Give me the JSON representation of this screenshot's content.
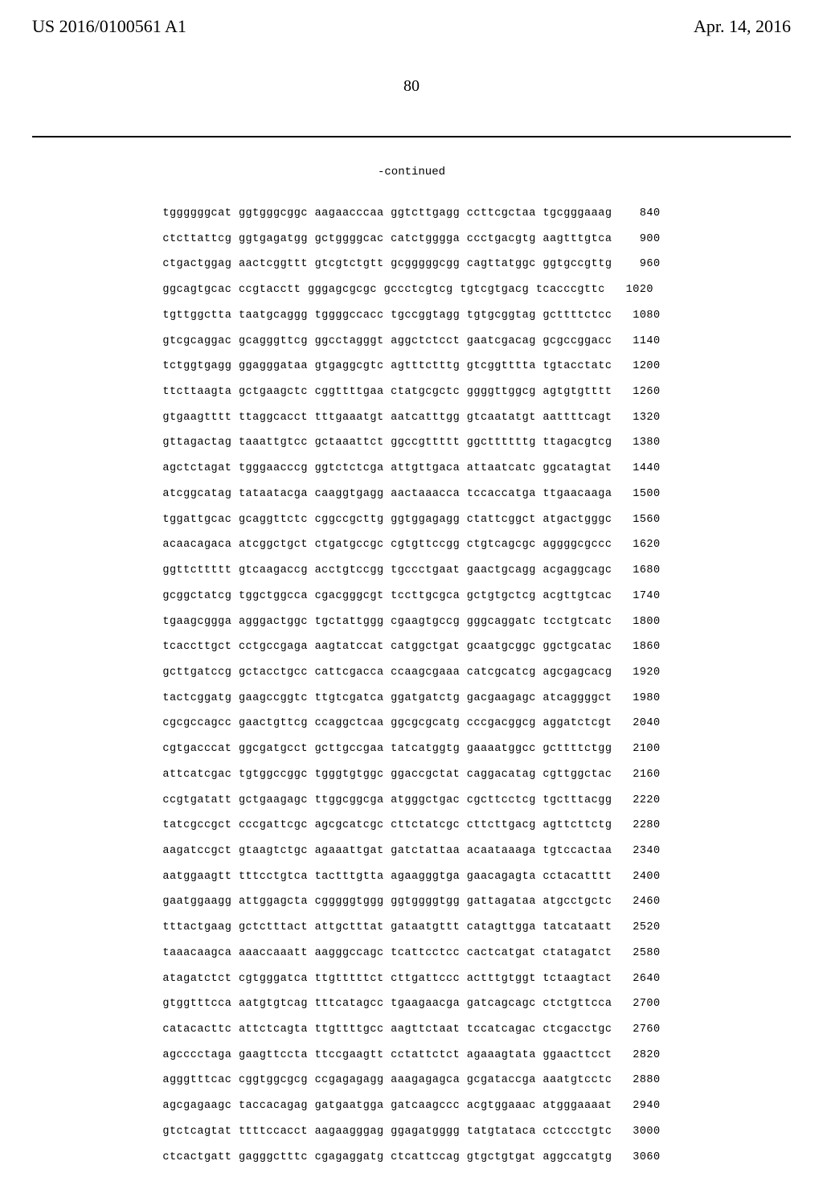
{
  "header": {
    "doc_number": "US 2016/0100561 A1",
    "doc_date": "Apr. 14, 2016"
  },
  "page_number": "80",
  "continued_label": "-continued",
  "sequence": {
    "font_family": "Courier New",
    "font_size_pt": 10,
    "line_height": 2.35,
    "text_color": "#000000",
    "background_color": "#ffffff",
    "lines": [
      {
        "seq": "tggggggcat ggtgggcggc aagaacccaa ggtcttgagg ccttcgctaa tgcgggaaag",
        "pos": "840"
      },
      {
        "seq": "ctcttattcg ggtgagatgg gctggggcac catctgggga ccctgacgtg aagtttgtca",
        "pos": "900"
      },
      {
        "seq": "ctgactggag aactcggttt gtcgtctgtt gcgggggcgg cagttatggc ggtgccgttg",
        "pos": "960"
      },
      {
        "seq": "ggcagtgcac ccgtacctt gggagcgcgc gccctcgtcg tgtcgtgacg tcacccgttc",
        "pos": "1020"
      },
      {
        "seq": "tgttggctta taatgcaggg tggggccacc tgccggtagg tgtgcggtag gcttttctcc",
        "pos": "1080"
      },
      {
        "seq": "gtcgcaggac gcagggttcg ggcctagggt aggctctcct gaatcgacag gcgccggacc",
        "pos": "1140"
      },
      {
        "seq": "tctggtgagg ggagggataa gtgaggcgtc agtttctttg gtcggtttta tgtacctatc",
        "pos": "1200"
      },
      {
        "seq": "ttcttaagta gctgaagctc cggttttgaa ctatgcgctc ggggttggcg agtgtgtttt",
        "pos": "1260"
      },
      {
        "seq": "gtgaagtttt ttaggcacct tttgaaatgt aatcatttgg gtcaatatgt aattttcagt",
        "pos": "1320"
      },
      {
        "seq": "gttagactag taaattgtcc gctaaattct ggccgttttt ggcttttttg ttagacgtcg",
        "pos": "1380"
      },
      {
        "seq": "agctctagat tgggaacccg ggtctctcga attgttgaca attaatcatc ggcatagtat",
        "pos": "1440"
      },
      {
        "seq": "atcggcatag tataatacga caaggtgagg aactaaacca tccaccatga ttgaacaaga",
        "pos": "1500"
      },
      {
        "seq": "tggattgcac gcaggttctc cggccgcttg ggtggagagg ctattcggct atgactgggc",
        "pos": "1560"
      },
      {
        "seq": "acaacagaca atcggctgct ctgatgccgc cgtgttccgg ctgtcagcgc aggggcgccc",
        "pos": "1620"
      },
      {
        "seq": "ggttcttttt gtcaagaccg acctgtccgg tgccctgaat gaactgcagg acgaggcagc",
        "pos": "1680"
      },
      {
        "seq": "gcggctatcg tggctggcca cgacgggcgt tccttgcgca gctgtgctcg acgttgtcac",
        "pos": "1740"
      },
      {
        "seq": "tgaagcggga agggactggc tgctattggg cgaagtgccg gggcaggatc tcctgtcatc",
        "pos": "1800"
      },
      {
        "seq": "tcaccttgct cctgccgaga aagtatccat catggctgat gcaatgcggc ggctgcatac",
        "pos": "1860"
      },
      {
        "seq": "gcttgatccg gctacctgcc cattcgacca ccaagcgaaa catcgcatcg agcgagcacg",
        "pos": "1920"
      },
      {
        "seq": "tactcggatg gaagccggtc ttgtcgatca ggatgatctg gacgaagagc atcaggggct",
        "pos": "1980"
      },
      {
        "seq": "cgcgccagcc gaactgttcg ccaggctcaa ggcgcgcatg cccgacggcg aggatctcgt",
        "pos": "2040"
      },
      {
        "seq": "cgtgacccat ggcgatgcct gcttgccgaa tatcatggtg gaaaatggcc gcttttctgg",
        "pos": "2100"
      },
      {
        "seq": "attcatcgac tgtggccggc tgggtgtggc ggaccgctat caggacatag cgttggctac",
        "pos": "2160"
      },
      {
        "seq": "ccgtgatatt gctgaagagc ttggcggcga atgggctgac cgcttcctcg tgctttacgg",
        "pos": "2220"
      },
      {
        "seq": "tatcgccgct cccgattcgc agcgcatcgc cttctatcgc cttcttgacg agttcttctg",
        "pos": "2280"
      },
      {
        "seq": "aagatccgct gtaagtctgc agaaattgat gatctattaa acaataaaga tgtccactaa",
        "pos": "2340"
      },
      {
        "seq": "aatggaagtt tttcctgtca tactttgtta agaagggtga gaacagagta cctacatttt",
        "pos": "2400"
      },
      {
        "seq": "gaatggaagg attggagcta cgggggtggg ggtggggtgg gattagataa atgcctgctc",
        "pos": "2460"
      },
      {
        "seq": "tttactgaag gctctttact attgctttat gataatgttt catagttgga tatcataatt",
        "pos": "2520"
      },
      {
        "seq": "taaacaagca aaaccaaatt aagggccagc tcattcctcc cactcatgat ctatagatct",
        "pos": "2580"
      },
      {
        "seq": "atagatctct cgtgggatca ttgtttttct cttgattccc actttgtggt tctaagtact",
        "pos": "2640"
      },
      {
        "seq": "gtggtttcca aatgtgtcag tttcatagcc tgaagaacga gatcagcagc ctctgttcca",
        "pos": "2700"
      },
      {
        "seq": "catacacttc attctcagta ttgttttgcc aagttctaat tccatcagac ctcgacctgc",
        "pos": "2760"
      },
      {
        "seq": "agcccctaga gaagttccta ttccgaagtt cctattctct agaaagtata ggaacttcct",
        "pos": "2820"
      },
      {
        "seq": "agggtttcac cggtggcgcg ccgagagagg aaagagagca gcgataccga aaatgtcctc",
        "pos": "2880"
      },
      {
        "seq": "agcgagaagc taccacagag gatgaatgga gatcaagccc acgtggaaac atgggaaaat",
        "pos": "2940"
      },
      {
        "seq": "gtctcagtat ttttccacct aagaagggag ggagatgggg tatgtataca cctccctgtc",
        "pos": "3000"
      },
      {
        "seq": "ctcactgatt gagggctttc cgagaggatg ctcattccag gtgctgtgat aggccatgtg",
        "pos": "3060"
      }
    ]
  }
}
